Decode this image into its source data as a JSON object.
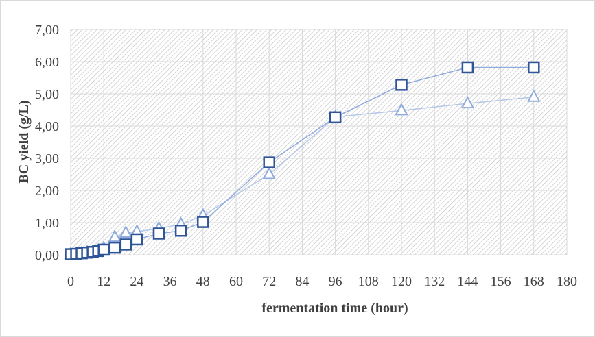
{
  "chart_data": {
    "type": "line",
    "title": "",
    "xlabel": "fermentation time (hour)",
    "ylabel": "BC yield (g/L)",
    "xlim": [
      0,
      180
    ],
    "ylim": [
      0,
      7
    ],
    "x_ticks": [
      "0",
      "12",
      "24",
      "36",
      "48",
      "60",
      "72",
      "84",
      "96",
      "108",
      "120",
      "132",
      "144",
      "156",
      "168",
      "180"
    ],
    "y_ticks": [
      "0,00",
      "1,00",
      "2,00",
      "3,00",
      "4,00",
      "5,00",
      "6,00",
      "7,00"
    ],
    "grid": true,
    "legend": "none",
    "series": [
      {
        "marker": "square",
        "color": "#2f5597",
        "line_color": "#8faadc",
        "x": [
          0,
          2,
          4,
          6,
          8,
          10,
          12,
          16,
          20,
          24,
          32,
          40,
          48,
          72,
          96,
          120,
          144,
          168
        ],
        "y": [
          0.02,
          0.03,
          0.05,
          0.07,
          0.09,
          0.12,
          0.16,
          0.22,
          0.32,
          0.48,
          0.66,
          0.75,
          1.02,
          2.87,
          4.27,
          5.28,
          5.82,
          5.82
        ]
      },
      {
        "marker": "triangle",
        "color": "#8faadc",
        "line_color": "#b4c7e7",
        "x": [
          0,
          2,
          4,
          6,
          8,
          10,
          12,
          16,
          20,
          24,
          32,
          40,
          48,
          72,
          96,
          120,
          144,
          168
        ],
        "y": [
          0.02,
          0.03,
          0.05,
          0.08,
          0.1,
          0.13,
          0.2,
          0.55,
          0.68,
          0.72,
          0.82,
          0.95,
          1.22,
          2.5,
          4.28,
          4.48,
          4.7,
          4.9
        ]
      }
    ]
  }
}
